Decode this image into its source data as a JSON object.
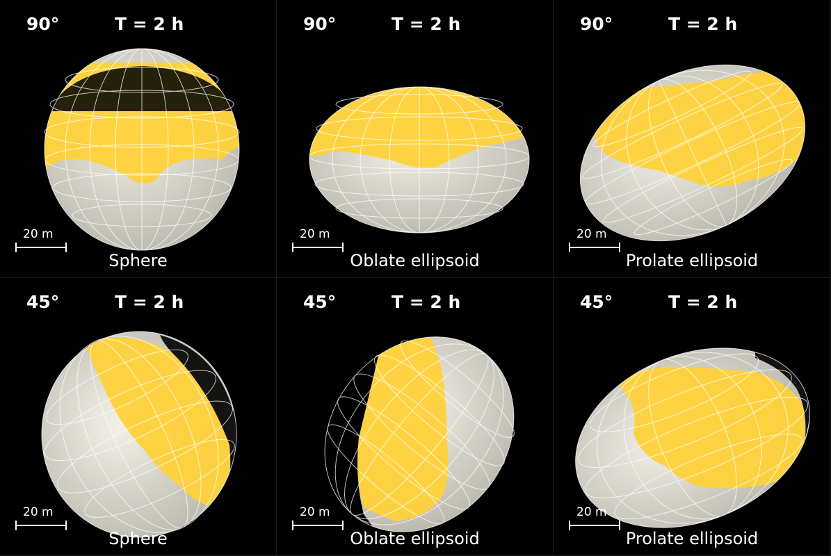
{
  "panels": [
    {
      "angle": "90°",
      "period": "T = 2 h",
      "scale": "20 m",
      "shape": "Sphere"
    },
    {
      "angle": "90°",
      "period": "T = 2 h",
      "scale": "20 m",
      "shape": "Oblate ellipsoid"
    },
    {
      "angle": "90°",
      "period": "T = 2 h",
      "scale": "20 m",
      "shape": "Prolate ellipsoid"
    },
    {
      "angle": "45°",
      "period": "T = 2 h",
      "scale": "20 m",
      "shape": "Sphere"
    },
    {
      "angle": "45°",
      "period": "T = 2 h",
      "scale": "20 m",
      "shape": "Oblate ellipsoid"
    },
    {
      "angle": "45°",
      "period": "T = 2 h",
      "scale": "20 m",
      "shape": "Prolate ellipsoid"
    }
  ],
  "colors": {
    "background": "#000000",
    "deposit": "#ffd23a",
    "body": "#e9e6dc",
    "gridlines": "#ffffff"
  }
}
